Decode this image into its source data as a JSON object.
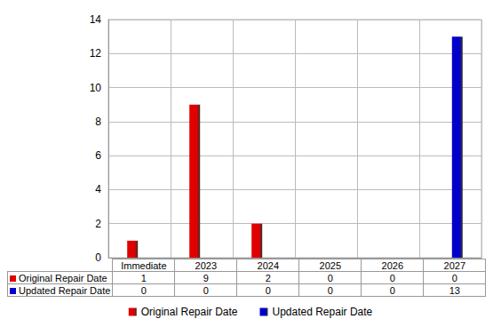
{
  "chart_data": {
    "type": "bar",
    "categories": [
      "Immediate",
      "2023",
      "2024",
      "2025",
      "2026",
      "2027"
    ],
    "series": [
      {
        "name": "Original Repair Date",
        "color": "#e00000",
        "values": [
          1,
          9,
          2,
          0,
          0,
          0
        ]
      },
      {
        "name": "Updated Repair Date",
        "color": "#0000cc",
        "values": [
          0,
          0,
          0,
          0,
          0,
          13
        ]
      }
    ],
    "ylim": [
      0,
      14
    ],
    "yticks": [
      0,
      2,
      4,
      6,
      8,
      10,
      12,
      14
    ],
    "grid": true,
    "legend": "bottom"
  }
}
